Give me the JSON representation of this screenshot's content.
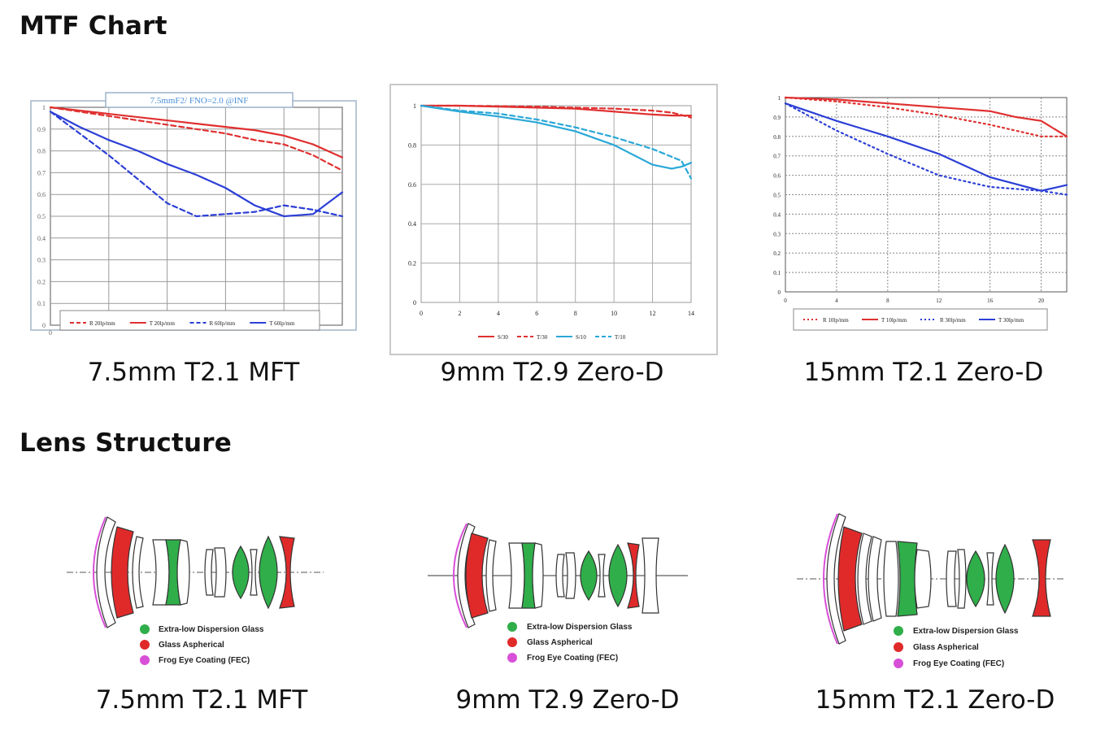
{
  "headings": {
    "mtf": "MTF Chart",
    "lens_structure": "Lens Structure"
  },
  "captions": {
    "mtf": [
      "7.5mm T2.1 MFT",
      "9mm T2.9 Zero-D",
      "15mm T2.1 Zero-D"
    ],
    "lens": [
      "7.5mm T2.1 MFT",
      "9mm T2.9 Zero-D",
      "15mm T2.1 Zero-D"
    ]
  },
  "lens_legend": [
    "Extra-low Dispersion Glass",
    "Glass Aspherical",
    "Frog Eye Coating (FEC)"
  ],
  "lens_legend_colors": [
    "#2fae4a",
    "#e02a2a",
    "#d84fd8"
  ],
  "chart_data": [
    {
      "type": "line",
      "title": "7.5mmF2/ FNO=2.0  @INF",
      "xlim": [
        0,
        1
      ],
      "ylim": [
        0,
        1
      ],
      "yticks": [
        "0",
        "0.1",
        "0.2",
        "0.3",
        "0.4",
        "0.5",
        "0.6",
        "0.7",
        "0.8",
        "0.9",
        "1"
      ],
      "xticks": [
        "0"
      ],
      "legend_position": "bottom",
      "series": [
        {
          "name": "R 20lp/mm",
          "color": "#e03030",
          "dash": true,
          "x": [
            0,
            0.1,
            0.2,
            0.3,
            0.4,
            0.5,
            0.6,
            0.7,
            0.8,
            0.9,
            1
          ],
          "y": [
            1,
            0.98,
            0.96,
            0.94,
            0.92,
            0.9,
            0.88,
            0.85,
            0.83,
            0.78,
            0.71
          ]
        },
        {
          "name": "T 20lp/mm",
          "color": "#e03030",
          "dash": false,
          "x": [
            0,
            0.1,
            0.2,
            0.3,
            0.4,
            0.5,
            0.6,
            0.7,
            0.8,
            0.9,
            1
          ],
          "y": [
            1,
            0.985,
            0.97,
            0.955,
            0.94,
            0.925,
            0.91,
            0.895,
            0.87,
            0.83,
            0.77
          ]
        },
        {
          "name": "R 60lp/mm",
          "color": "#2c3fd6",
          "dash": true,
          "x": [
            0,
            0.1,
            0.2,
            0.3,
            0.4,
            0.5,
            0.6,
            0.7,
            0.8,
            0.9,
            1
          ],
          "y": [
            0.98,
            0.88,
            0.78,
            0.67,
            0.56,
            0.5,
            0.51,
            0.52,
            0.55,
            0.53,
            0.5
          ]
        },
        {
          "name": "T 60lp/mm",
          "color": "#2c3fd6",
          "dash": false,
          "x": [
            0,
            0.1,
            0.2,
            0.3,
            0.4,
            0.5,
            0.6,
            0.7,
            0.8,
            0.9,
            1
          ],
          "y": [
            0.98,
            0.91,
            0.85,
            0.8,
            0.74,
            0.69,
            0.63,
            0.55,
            0.5,
            0.51,
            0.61
          ]
        }
      ]
    },
    {
      "type": "line",
      "xlim": [
        0,
        14
      ],
      "ylim": [
        0,
        1
      ],
      "xticks": [
        "0",
        "2",
        "4",
        "6",
        "8",
        "10",
        "12",
        "14"
      ],
      "yticks": [
        "0",
        "0.2",
        "0.4",
        "0.6",
        "0.8",
        "1"
      ],
      "legend_position": "bottom",
      "series": [
        {
          "name": "S/30",
          "color": "#e03030",
          "dash": false,
          "x": [
            0,
            2,
            4,
            6,
            8,
            10,
            12,
            13,
            14
          ],
          "y": [
            1,
            1,
            0.995,
            0.99,
            0.985,
            0.97,
            0.955,
            0.95,
            0.95
          ]
        },
        {
          "name": "T/30",
          "color": "#e03030",
          "dash": true,
          "x": [
            0,
            2,
            4,
            6,
            8,
            10,
            12,
            13,
            14
          ],
          "y": [
            1,
            1,
            0.998,
            0.995,
            0.99,
            0.985,
            0.975,
            0.965,
            0.94
          ]
        },
        {
          "name": "S/10",
          "color": "#2aa8d8",
          "dash": false,
          "x": [
            0,
            2,
            4,
            6,
            8,
            10,
            11,
            12,
            13,
            13.5,
            14
          ],
          "y": [
            1,
            0.97,
            0.945,
            0.915,
            0.87,
            0.8,
            0.75,
            0.7,
            0.68,
            0.69,
            0.71
          ]
        },
        {
          "name": "T/10",
          "color": "#2aa8d8",
          "dash": true,
          "x": [
            0,
            2,
            4,
            6,
            8,
            10,
            11,
            12,
            13,
            13.5,
            14
          ],
          "y": [
            1,
            0.975,
            0.96,
            0.93,
            0.89,
            0.84,
            0.81,
            0.78,
            0.74,
            0.72,
            0.63
          ]
        }
      ]
    },
    {
      "type": "line",
      "xlim": [
        0,
        22
      ],
      "ylim": [
        0,
        1
      ],
      "xticks": [
        "0",
        "4",
        "8",
        "12",
        "16",
        "20"
      ],
      "yticks": [
        "0",
        "0.1",
        "0.2",
        "0.3",
        "0.4",
        "0.5",
        "0.6",
        "0.7",
        "0.8",
        "0.9",
        "1"
      ],
      "legend_position": "bottom",
      "series": [
        {
          "name": "R 10lp/mm",
          "color": "#e03030",
          "dash": true,
          "x": [
            0,
            4,
            8,
            12,
            16,
            20,
            22
          ],
          "y": [
            1,
            0.98,
            0.95,
            0.91,
            0.86,
            0.8,
            0.8
          ]
        },
        {
          "name": "T 10lp/mm",
          "color": "#e03030",
          "dash": false,
          "x": [
            0,
            4,
            8,
            12,
            16,
            18,
            20,
            21,
            22
          ],
          "y": [
            1,
            0.99,
            0.97,
            0.95,
            0.93,
            0.9,
            0.88,
            0.84,
            0.8
          ]
        },
        {
          "name": "R 30lp/mm",
          "color": "#2c3fd6",
          "dash": true,
          "x": [
            0,
            4,
            8,
            12,
            16,
            20,
            22
          ],
          "y": [
            0.97,
            0.83,
            0.71,
            0.6,
            0.54,
            0.52,
            0.5
          ]
        },
        {
          "name": "T 30lp/mm",
          "color": "#2c3fd6",
          "dash": false,
          "x": [
            0,
            4,
            8,
            12,
            16,
            20,
            22
          ],
          "y": [
            0.97,
            0.88,
            0.8,
            0.71,
            0.59,
            0.52,
            0.55
          ]
        }
      ]
    }
  ]
}
